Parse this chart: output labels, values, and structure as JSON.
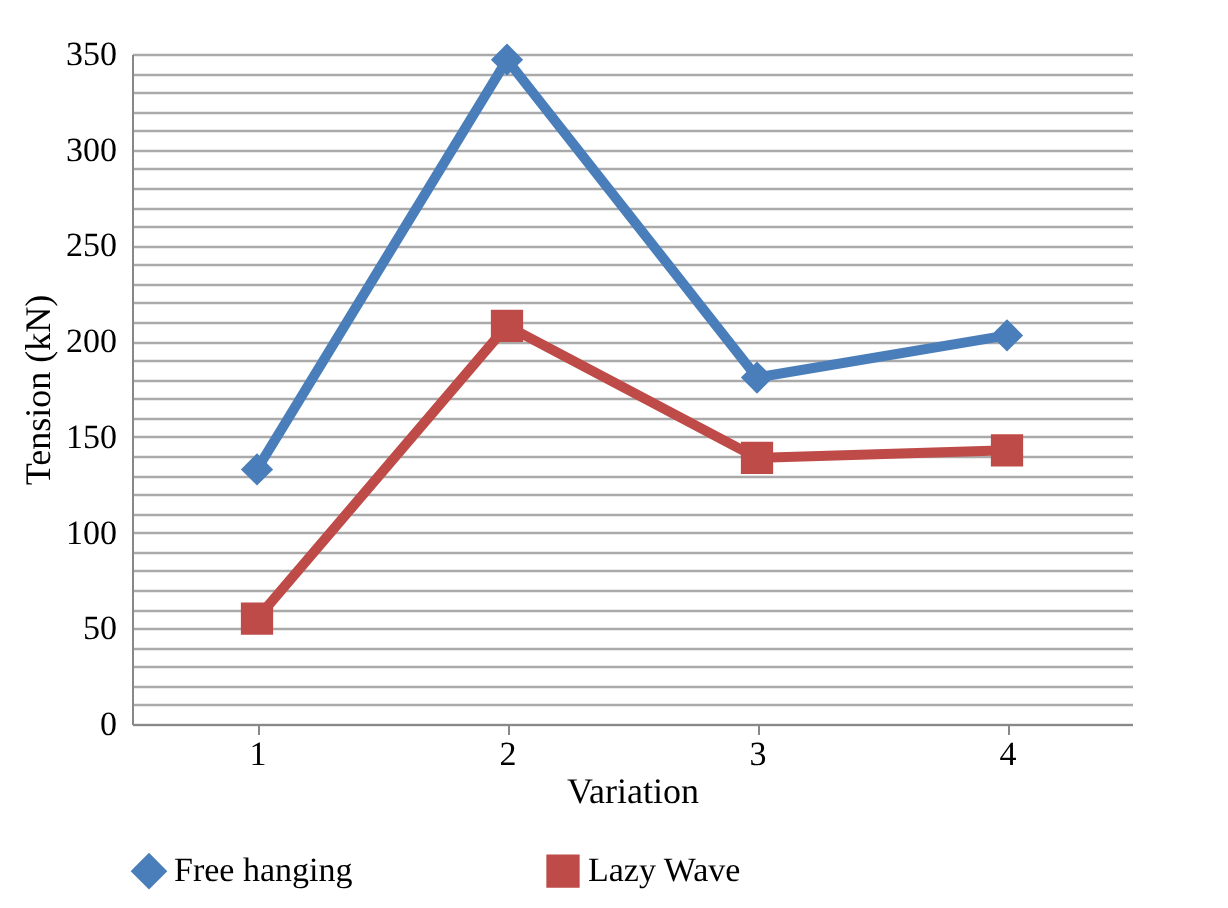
{
  "chart_data": {
    "type": "line",
    "xlabel": "Variation",
    "ylabel": "Tension (kN)",
    "categories": [
      "1",
      "2",
      "3",
      "4"
    ],
    "series": [
      {
        "name": "Free hanging",
        "color": "#4a7ebb",
        "marker": "diamond",
        "values": [
          133,
          347,
          181,
          203
        ]
      },
      {
        "name": "Lazy Wave",
        "color": "#be4b48",
        "marker": "square",
        "values": [
          55,
          208,
          139,
          143
        ]
      }
    ],
    "ylim": [
      0,
      350
    ],
    "yticks": [
      0,
      {
        "value": 10,
        "label": null
      },
      {
        "value": 20,
        "label": null
      },
      {
        "value": 30,
        "label": null
      },
      {
        "value": 40,
        "label": null
      },
      50,
      {
        "value": 60,
        "label": null
      },
      {
        "value": 70,
        "label": null
      },
      {
        "value": 80,
        "label": null
      },
      {
        "value": 90,
        "label": null
      },
      100,
      {
        "value": 110,
        "label": null
      },
      {
        "value": 120,
        "label": null
      },
      {
        "value": 130,
        "label": null
      },
      {
        "value": 140,
        "label": null
      },
      150,
      {
        "value": 160,
        "label": null
      },
      {
        "value": 170,
        "label": null
      },
      {
        "value": 180,
        "label": null
      },
      {
        "value": 190,
        "label": null
      },
      200,
      {
        "value": 210,
        "label": null
      },
      {
        "value": 220,
        "label": null
      },
      {
        "value": 230,
        "label": null
      },
      {
        "value": 240,
        "label": null
      },
      250,
      {
        "value": 260,
        "label": null
      },
      {
        "value": 270,
        "label": null
      },
      {
        "value": 280,
        "label": null
      },
      {
        "value": 290,
        "label": null
      },
      300,
      {
        "value": 310,
        "label": null
      },
      {
        "value": 320,
        "label": null
      },
      {
        "value": 330,
        "label": null
      },
      {
        "value": 340,
        "label": null
      },
      350
    ],
    "grid": "y",
    "legend": "bottom",
    "line_style": "solid"
  }
}
